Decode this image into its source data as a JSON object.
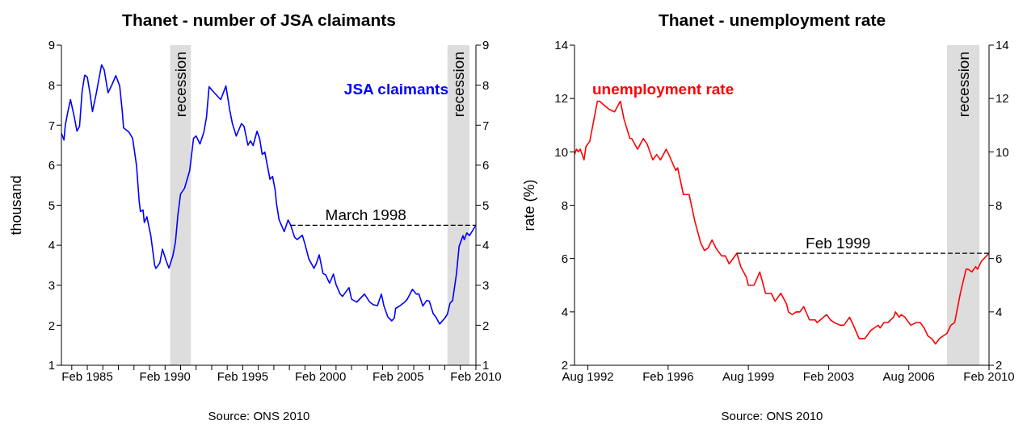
{
  "chart_data": [
    {
      "type": "line",
      "title": "Thanet - number of JSA claimants",
      "ylabel": "thousand",
      "legend": false,
      "grid": false,
      "line_style": "solid",
      "marker": "none",
      "xlim": [
        "1983-06",
        "2010-02"
      ],
      "xticks": [
        {
          "value": "1984-02",
          "label": null
        },
        {
          "value": "1985-02",
          "label": "Feb 1985"
        },
        {
          "value": "1986-02",
          "label": null
        },
        {
          "value": "1987-02",
          "label": null
        },
        {
          "value": "1988-02",
          "label": null
        },
        {
          "value": "1989-02",
          "label": null
        },
        {
          "value": "1990-02",
          "label": "Feb 1990"
        },
        {
          "value": "1991-02",
          "label": null
        },
        {
          "value": "1992-02",
          "label": null
        },
        {
          "value": "1993-02",
          "label": null
        },
        {
          "value": "1994-02",
          "label": null
        },
        {
          "value": "1995-02",
          "label": "Feb 1995"
        },
        {
          "value": "1996-02",
          "label": null
        },
        {
          "value": "1997-02",
          "label": null
        },
        {
          "value": "1998-02",
          "label": null
        },
        {
          "value": "1999-02",
          "label": null
        },
        {
          "value": "2000-02",
          "label": "Feb 2000"
        },
        {
          "value": "2001-02",
          "label": null
        },
        {
          "value": "2002-02",
          "label": null
        },
        {
          "value": "2003-02",
          "label": null
        },
        {
          "value": "2004-02",
          "label": null
        },
        {
          "value": "2005-02",
          "label": "Feb 2005"
        },
        {
          "value": "2006-02",
          "label": null
        },
        {
          "value": "2007-02",
          "label": null
        },
        {
          "value": "2008-02",
          "label": null
        },
        {
          "value": "2009-02",
          "label": null
        },
        {
          "value": "2010-02",
          "label": "Feb 2010"
        }
      ],
      "ylim": [
        1,
        9
      ],
      "yticks": [
        1,
        2,
        3,
        4,
        5,
        6,
        7,
        8,
        9
      ],
      "y2lim": [
        1,
        9
      ],
      "y2ticks": [
        1,
        2,
        3,
        4,
        5,
        6,
        7,
        8,
        9
      ],
      "bands": [
        {
          "axis": "x",
          "from": "1990-06",
          "to": "1991-10",
          "label": "recession",
          "color": "#dddddd"
        },
        {
          "axis": "x",
          "from": "2008-04",
          "to": "2009-09",
          "label": "recession",
          "color": "#dddddd"
        }
      ],
      "annotations": [
        {
          "text": "March 1998",
          "x": "2003-01",
          "y": 4.5
        },
        "Source: ONS 2010"
      ],
      "series": [
        {
          "name": "JSA claimants",
          "color": "#0000ff",
          "x": [
            "1983-06",
            "1983-08",
            "1983-09",
            "1983-11",
            "1984-01",
            "1984-04",
            "1984-06",
            "1984-08",
            "1984-10",
            "1984-12",
            "1985-02",
            "1985-04",
            "1985-06",
            "1985-09",
            "1986-01",
            "1986-03",
            "1986-06",
            "1986-09",
            "1986-12",
            "1987-03",
            "1987-05",
            "1987-06",
            "1987-10",
            "1988-01",
            "1988-04",
            "1988-06",
            "1988-07",
            "1988-09",
            "1988-10",
            "1988-12",
            "1989-03",
            "1989-06",
            "1989-07",
            "1989-10",
            "1989-12",
            "1990-03",
            "1990-05",
            "1990-08",
            "1990-10",
            "1990-12",
            "1991-02",
            "1991-05",
            "1991-09",
            "1991-12",
            "1992-02",
            "1992-05",
            "1992-08",
            "1992-10",
            "1992-12",
            "1993-04",
            "1993-09",
            "1994-01",
            "1994-04",
            "1994-06",
            "1994-09",
            "1995-01",
            "1995-03",
            "1995-06",
            "1995-08",
            "1995-10",
            "1996-01",
            "1996-03",
            "1996-05",
            "1996-07",
            "1996-11",
            "1997-01",
            "1997-03",
            "1997-04",
            "1997-06",
            "1997-10",
            "1998-01",
            "1998-03",
            "1998-06",
            "1998-08",
            "1998-12",
            "1999-02",
            "1999-05",
            "1999-09",
            "1999-11",
            "2000-01",
            "2000-04",
            "2000-06",
            "2000-09",
            "2000-12",
            "2001-02",
            "2001-05",
            "2001-07",
            "2001-12",
            "2002-02",
            "2002-06",
            "2002-12",
            "2003-04",
            "2003-07",
            "2003-10",
            "2004-01",
            "2004-03",
            "2004-06",
            "2004-09",
            "2004-11",
            "2004-12",
            "2005-03",
            "2005-07",
            "2005-09",
            "2006-01",
            "2006-04",
            "2006-06",
            "2006-09",
            "2006-12",
            "2007-02",
            "2007-05",
            "2007-07",
            "2007-10",
            "2008-02",
            "2008-04",
            "2008-06",
            "2008-08",
            "2008-11",
            "2009-01",
            "2009-04",
            "2009-05",
            "2009-07",
            "2009-09",
            "2010-02"
          ],
          "values": [
            6.8,
            6.63,
            7.0,
            7.34,
            7.64,
            7.2,
            6.85,
            6.97,
            7.85,
            8.25,
            8.2,
            7.81,
            7.34,
            7.81,
            8.51,
            8.39,
            7.81,
            8.01,
            8.24,
            7.98,
            7.34,
            6.93,
            6.83,
            6.67,
            5.99,
            5.11,
            4.84,
            4.88,
            4.57,
            4.71,
            4.24,
            3.5,
            3.42,
            3.56,
            3.9,
            3.6,
            3.43,
            3.73,
            4.07,
            4.78,
            5.28,
            5.42,
            5.86,
            6.67,
            6.73,
            6.53,
            6.83,
            7.2,
            7.96,
            7.81,
            7.64,
            7.98,
            7.37,
            7.04,
            6.73,
            7.04,
            6.97,
            6.5,
            6.61,
            6.49,
            6.85,
            6.67,
            6.27,
            6.33,
            5.65,
            5.72,
            5.38,
            5.05,
            4.64,
            4.34,
            4.63,
            4.5,
            4.2,
            4.14,
            4.25,
            4.03,
            3.66,
            3.42,
            3.56,
            3.76,
            3.29,
            3.26,
            3.05,
            3.28,
            3.02,
            2.79,
            2.72,
            2.94,
            2.65,
            2.58,
            2.78,
            2.58,
            2.51,
            2.49,
            2.78,
            2.48,
            2.21,
            2.11,
            2.18,
            2.42,
            2.48,
            2.58,
            2.65,
            2.9,
            2.78,
            2.78,
            2.48,
            2.62,
            2.6,
            2.29,
            2.21,
            2.03,
            2.18,
            2.28,
            2.55,
            2.62,
            3.29,
            3.97,
            4.24,
            4.14,
            4.31,
            4.24,
            4.5
          ]
        },
        {
          "color": "#000000",
          "line_style": "dashed",
          "x": [
            "1998-03",
            "2010-02"
          ],
          "values": [
            4.5,
            4.5
          ]
        }
      ]
    },
    {
      "type": "line",
      "title": "Thanet - unemployment rate",
      "ylabel": "rate (%)",
      "legend": false,
      "grid": false,
      "line_style": "solid",
      "marker": "none",
      "xlim": [
        "1992-01",
        "2010-02"
      ],
      "xticks": [
        {
          "value": "1992-08",
          "label": "Aug 1992"
        },
        {
          "value": "1996-02",
          "label": "Feb 1996"
        },
        {
          "value": "1999-08",
          "label": "Aug 1999"
        },
        {
          "value": "2003-02",
          "label": "Feb 2003"
        },
        {
          "value": "2006-08",
          "label": "Aug 2006"
        },
        {
          "value": "2010-02",
          "label": "Feb 2010"
        }
      ],
      "ylim": [
        2,
        14
      ],
      "yticks": [
        2,
        4,
        6,
        8,
        10,
        12,
        14
      ],
      "y2lim": [
        2,
        14
      ],
      "y2ticks": [
        2,
        4,
        6,
        8,
        10,
        12,
        14
      ],
      "bands": [
        {
          "axis": "x",
          "from": "2008-04",
          "to": "2009-09",
          "label": "recession",
          "color": "#dddddd"
        }
      ],
      "annotations": [
        {
          "text": "Feb 1999",
          "x": "2003-07",
          "y": 6.2
        },
        "Source: ONS 2010"
      ],
      "series": [
        {
          "name": "unemployment rate",
          "color": "#ff0000",
          "x": [
            "1992-01",
            "1992-02",
            "1992-03",
            "1992-04",
            "1992-06",
            "1992-07",
            "1992-09",
            "1993-01",
            "1993-02",
            "1993-07",
            "1993-10",
            "1994-01",
            "1994-03",
            "1994-06",
            "1994-07",
            "1994-10",
            "1995-01",
            "1995-03",
            "1995-06",
            "1995-08",
            "1995-10",
            "1996-01",
            "1996-03",
            "1996-06",
            "1996-07",
            "1996-10",
            "1997-01",
            "1997-04",
            "1997-07",
            "1997-09",
            "1997-11",
            "1998-01",
            "1998-03",
            "1998-06",
            "1998-08",
            "1998-10",
            "1998-12",
            "1999-02",
            "1999-04",
            "1999-07",
            "1999-08",
            "1999-11",
            "2000-02",
            "2000-05",
            "2000-08",
            "2000-10",
            "2001-01",
            "2001-04",
            "2001-05",
            "2001-07",
            "2001-09",
            "2001-11",
            "2002-01",
            "2002-04",
            "2002-07",
            "2002-08",
            "2003-01",
            "2003-03",
            "2003-05",
            "2003-08",
            "2003-10",
            "2004-01",
            "2004-03",
            "2004-06",
            "2004-09",
            "2004-12",
            "2005-02",
            "2005-04",
            "2005-05",
            "2005-07",
            "2005-09",
            "2005-12",
            "2006-01",
            "2006-03",
            "2006-04",
            "2006-06",
            "2006-09",
            "2006-12",
            "2007-02",
            "2007-04",
            "2007-06",
            "2007-08",
            "2007-10",
            "2007-12",
            "2008-02",
            "2008-04",
            "2008-06",
            "2008-08",
            "2008-11",
            "2009-02",
            "2009-03",
            "2009-05",
            "2009-07",
            "2009-08",
            "2009-10",
            "2010-02"
          ],
          "values": [
            9.9,
            10.1,
            10.0,
            10.1,
            9.7,
            10.2,
            10.4,
            11.9,
            11.9,
            11.6,
            11.5,
            11.9,
            11.2,
            10.5,
            10.5,
            10.1,
            10.5,
            10.3,
            9.7,
            9.9,
            9.7,
            10.1,
            9.8,
            9.3,
            9.4,
            8.4,
            8.4,
            7.4,
            6.6,
            6.3,
            6.4,
            6.7,
            6.4,
            6.1,
            6.1,
            5.8,
            6.0,
            6.2,
            5.7,
            5.3,
            5.0,
            5.0,
            5.5,
            4.7,
            4.7,
            4.4,
            4.7,
            4.3,
            4.0,
            3.9,
            4.0,
            4.0,
            4.2,
            3.7,
            3.7,
            3.6,
            3.9,
            3.7,
            3.6,
            3.5,
            3.5,
            3.8,
            3.5,
            3.0,
            3.0,
            3.3,
            3.4,
            3.5,
            3.4,
            3.6,
            3.6,
            3.8,
            4.0,
            3.8,
            3.9,
            3.8,
            3.5,
            3.6,
            3.6,
            3.4,
            3.1,
            3.0,
            2.8,
            3.0,
            3.1,
            3.2,
            3.5,
            3.6,
            4.7,
            5.6,
            5.6,
            5.5,
            5.7,
            5.6,
            5.9,
            6.2
          ]
        },
        {
          "color": "#000000",
          "line_style": "dashed",
          "x": [
            "1999-02",
            "2010-02"
          ],
          "values": [
            6.2,
            6.2
          ]
        }
      ]
    }
  ]
}
